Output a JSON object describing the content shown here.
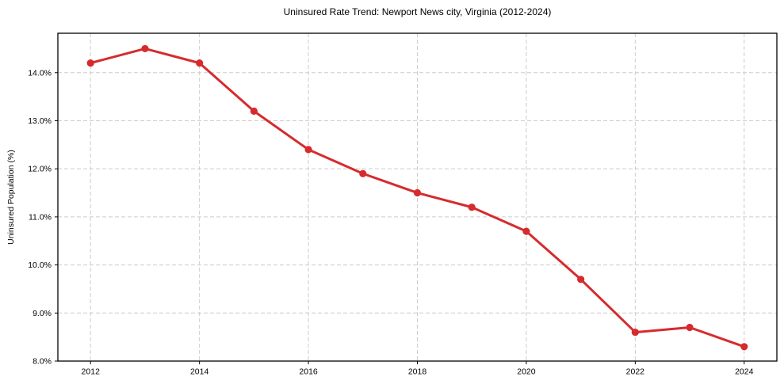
{
  "figure": {
    "background": "#ffffff"
  },
  "chart_data": {
    "type": "line",
    "title": "Uninsured Rate Trend: Newport News city, Virginia (2012-2024)",
    "xlabel": "",
    "ylabel": "Uninsured Population (%)",
    "x": [
      2012,
      2013,
      2014,
      2015,
      2016,
      2017,
      2018,
      2019,
      2020,
      2021,
      2022,
      2023,
      2024
    ],
    "values": [
      14.2,
      14.5,
      14.2,
      13.2,
      12.4,
      11.9,
      11.5,
      11.2,
      10.7,
      9.7,
      8.6,
      8.7,
      8.3
    ],
    "x_ticks": [
      2012,
      2014,
      2016,
      2018,
      2020,
      2022,
      2024
    ],
    "x_tick_labels": [
      "2012",
      "2014",
      "2016",
      "2018",
      "2020",
      "2022",
      "2024"
    ],
    "y_ticks": [
      8.0,
      9.0,
      10.0,
      11.0,
      12.0,
      13.0,
      14.0
    ],
    "y_tick_labels": [
      "8.0%",
      "9.0%",
      "10.0%",
      "11.0%",
      "12.0%",
      "13.0%",
      "14.0%"
    ],
    "xlim": [
      2011.4,
      2024.6
    ],
    "ylim": [
      8.0,
      14.82
    ],
    "grid": true,
    "grid_style": "dashed",
    "legend": "none",
    "line_color": "#d62b2e",
    "marker_color": "#d62b2e",
    "grid_color": "#cccccc",
    "frame_color": "#000000",
    "tick_color": "#000000"
  }
}
